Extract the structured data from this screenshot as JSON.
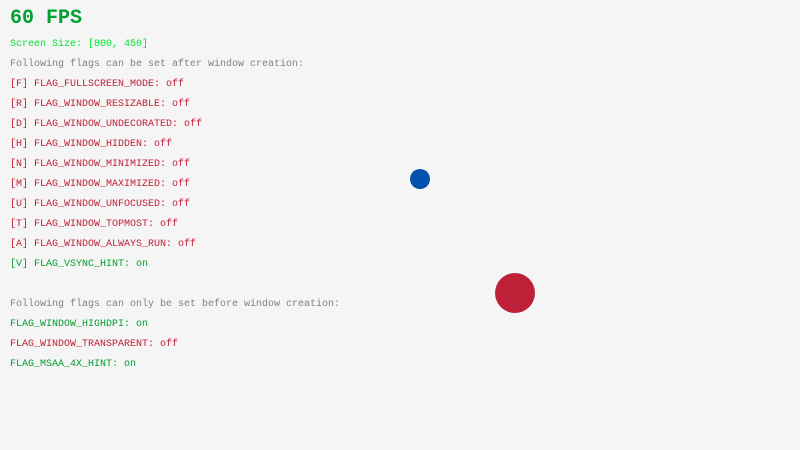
{
  "fps": "60 FPS",
  "screen_size": "Screen Size: [800, 450]",
  "after_header": "Following flags can be set after window creation:",
  "after_flags": [
    {
      "label": "[F] FLAG_FULLSCREEN_MODE: ",
      "value": "off",
      "state": "off"
    },
    {
      "label": "[R] FLAG_WINDOW_RESIZABLE: ",
      "value": "off",
      "state": "off"
    },
    {
      "label": "[D] FLAG_WINDOW_UNDECORATED: ",
      "value": "off",
      "state": "off"
    },
    {
      "label": "[H] FLAG_WINDOW_HIDDEN: ",
      "value": "off",
      "state": "off"
    },
    {
      "label": "[N] FLAG_WINDOW_MINIMIZED: ",
      "value": "off",
      "state": "off"
    },
    {
      "label": "[M] FLAG_WINDOW_MAXIMIZED: ",
      "value": "off",
      "state": "off"
    },
    {
      "label": "[U] FLAG_WINDOW_UNFOCUSED: ",
      "value": "off",
      "state": "off"
    },
    {
      "label": "[T] FLAG_WINDOW_TOPMOST: ",
      "value": "off",
      "state": "off"
    },
    {
      "label": "[A] FLAG_WINDOW_ALWAYS_RUN: ",
      "value": "off",
      "state": "off"
    },
    {
      "label": "[V] FLAG_VSYNC_HINT: ",
      "value": "on",
      "state": "on"
    }
  ],
  "before_header": "Following flags can only be set before window creation:",
  "before_flags": [
    {
      "label": "FLAG_WINDOW_HIGHDPI: ",
      "value": "on",
      "state": "on"
    },
    {
      "label": "FLAG_WINDOW_TRANSPARENT: ",
      "value": "off",
      "state": "off"
    },
    {
      "label": "FLAG_MSAA_4X_HINT: ",
      "value": "on",
      "state": "on"
    }
  ],
  "colors": {
    "background": "#f5f5f5",
    "on": "#009e2f",
    "off": "#be2137",
    "blue_ball": "#0052ac",
    "red_ball": "#be2137"
  }
}
